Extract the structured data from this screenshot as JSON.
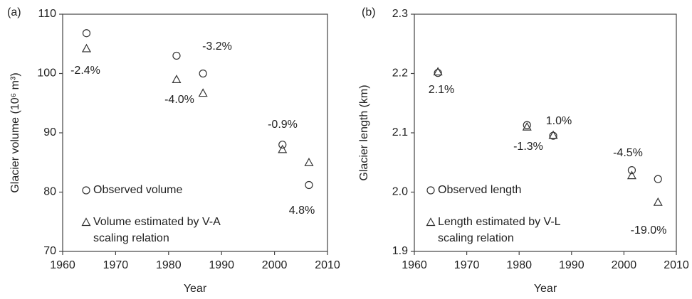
{
  "chart_data": [
    {
      "type": "scatter",
      "panel_label": "(a)",
      "x_label": "Year",
      "y_label": "Glacier volume (10⁶ m³)",
      "xlim": [
        1960,
        2010
      ],
      "xticks": [
        1960,
        1970,
        1980,
        1990,
        2000,
        2010
      ],
      "ylim": [
        70,
        110
      ],
      "yticks": [
        70,
        80,
        90,
        100,
        110
      ],
      "series": [
        {
          "name": "Observed volume",
          "marker": "circle",
          "color": "#333333",
          "x": [
            1964.5,
            1981.5,
            1986.5,
            2001.5,
            2006.5
          ],
          "values": [
            106.8,
            103,
            100,
            88,
            81.2
          ]
        },
        {
          "name": "Volume estimated by V-A scaling relation",
          "marker": "triangle",
          "color": "#333333",
          "x": [
            1964.5,
            1981.5,
            1986.5,
            2001.5,
            2006.5
          ],
          "values": [
            104.2,
            99,
            96.7,
            87.2,
            85
          ]
        }
      ],
      "annotations": [
        "-2.4%",
        "-4.0%",
        "-3.2%",
        "-0.9%",
        "4.8%"
      ]
    },
    {
      "type": "scatter",
      "panel_label": "(b)",
      "x_label": "Year",
      "y_label": "Glacier length (km)",
      "xlim": [
        1960,
        2010
      ],
      "xticks": [
        1960,
        1970,
        1980,
        1990,
        2000,
        2010
      ],
      "ylim": [
        1.9,
        2.3
      ],
      "yticks": [
        1.9,
        {
          "value": 2,
          "label": "2.0"
        },
        2.1,
        2.2,
        2.3
      ],
      "series": [
        {
          "name": "Observed length",
          "marker": "circle",
          "color": "#333333",
          "x": [
            1964.5,
            1981.5,
            1986.5,
            2001.5,
            2006.5
          ],
          "values": [
            2.201,
            2.113,
            2.095,
            2.037,
            2.022
          ]
        },
        {
          "name": "Length estimated by V-L scaling relation",
          "marker": "triangle",
          "color": "#333333",
          "x": [
            1964.5,
            1981.5,
            1986.5,
            2001.5,
            2006.5
          ],
          "values": [
            2.203,
            2.11,
            2.096,
            2.028,
            1.983
          ]
        }
      ],
      "annotations": [
        "2.1%",
        "-1.3%",
        "1.0%",
        "-4.5%",
        "-19.0%"
      ]
    }
  ]
}
